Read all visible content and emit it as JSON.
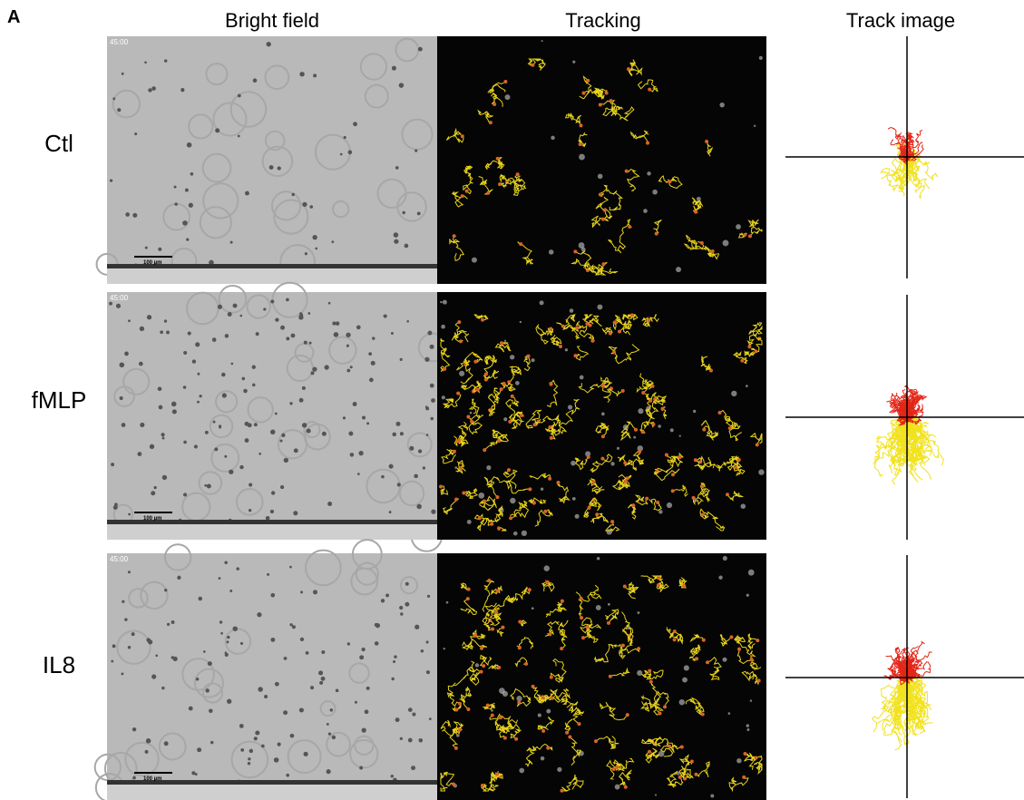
{
  "panel_label": "A",
  "columns": [
    "Bright field",
    "Tracking",
    "Track image"
  ],
  "rows": [
    {
      "label": "Ctl",
      "timestamp": "45:00",
      "scale_bar": "100 µm"
    },
    {
      "label": "fMLP",
      "timestamp": "45:00",
      "scale_bar": "100 µm"
    },
    {
      "label": "IL8",
      "timestamp": "45:00",
      "scale_bar": "100 µm"
    }
  ]
}
